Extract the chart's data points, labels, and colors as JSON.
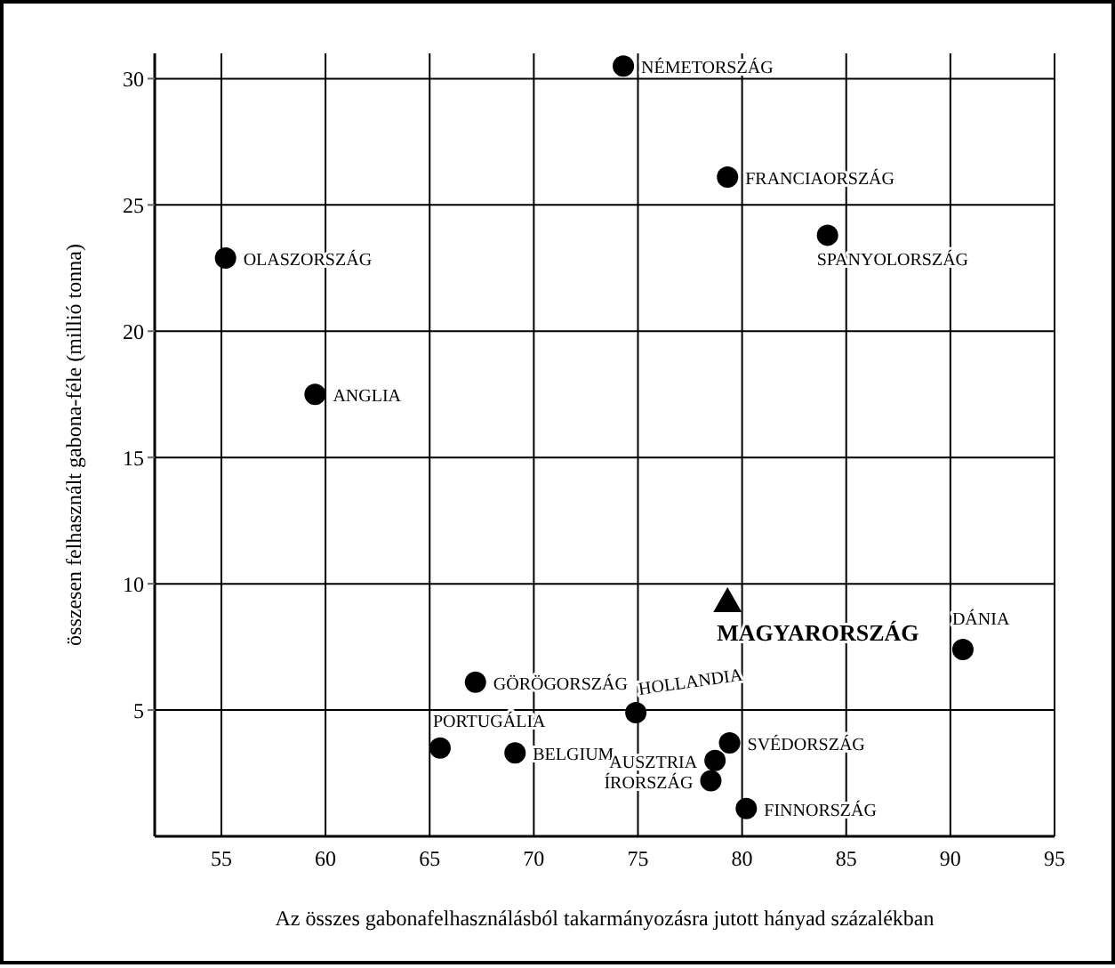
{
  "chart_data": {
    "type": "scatter",
    "xlabel": "Az összes gabonafelhasználásból takarmányozásra jutott hányad százalékban",
    "ylabel": "összesen felhasznált gabona-féle (millió tonna)",
    "xlim": [
      51.8,
      95
    ],
    "xticks": [
      55,
      60,
      65,
      70,
      75,
      80,
      85,
      90,
      95
    ],
    "ylim": [
      0,
      31
    ],
    "yticks": [
      5,
      10,
      15,
      20,
      25,
      30
    ],
    "grid": true,
    "legend": false,
    "marker": "circle",
    "series": [
      {
        "name": "NÉMETORSZÁG",
        "color": "#000000",
        "x": [
          74.3
        ],
        "values": [
          30.5
        ]
      },
      {
        "name": "FRANCIAORSZÁG",
        "color": "#000000",
        "x": [
          79.3
        ],
        "values": [
          26.1
        ]
      },
      {
        "name": "SPANYOLORSZÁG",
        "color": "#000000",
        "x": [
          84.1
        ],
        "values": [
          23.8
        ]
      },
      {
        "name": "OLASZORSZÁG",
        "color": "#000000",
        "x": [
          55.2
        ],
        "values": [
          22.9
        ]
      },
      {
        "name": "ANGLIA",
        "color": "#000000",
        "x": [
          59.5
        ],
        "values": [
          17.5
        ]
      },
      {
        "name": "MAGYARORSZÁG",
        "color": "#000000",
        "x": [
          79.3
        ],
        "values": [
          9.3
        ],
        "marker": "triangle"
      },
      {
        "name": "DÁNIA",
        "color": "#000000",
        "x": [
          90.6
        ],
        "values": [
          7.4
        ]
      },
      {
        "name": "GÖRÖGORSZÁG",
        "color": "#000000",
        "x": [
          67.2
        ],
        "values": [
          6.1
        ]
      },
      {
        "name": "HOLLANDIA",
        "color": "#000000",
        "x": [
          74.9
        ],
        "values": [
          4.9
        ]
      },
      {
        "name": "PORTUGÁLIA",
        "color": "#000000",
        "x": [
          65.5
        ],
        "values": [
          3.5
        ]
      },
      {
        "name": "BELGIUM",
        "color": "#000000",
        "x": [
          69.1
        ],
        "values": [
          3.3
        ]
      },
      {
        "name": "SVÉDORSZÁG",
        "color": "#000000",
        "x": [
          79.4
        ],
        "values": [
          3.7
        ]
      },
      {
        "name": "AUSZTRIA",
        "color": "#000000",
        "x": [
          78.7
        ],
        "values": [
          3.0
        ]
      },
      {
        "name": "ÍRORSZÁG",
        "color": "#000000",
        "x": [
          78.5
        ],
        "values": [
          2.2
        ]
      },
      {
        "name": "FINNORSZÁG",
        "color": "#000000",
        "x": [
          80.2
        ],
        "values": [
          1.1
        ]
      }
    ]
  }
}
